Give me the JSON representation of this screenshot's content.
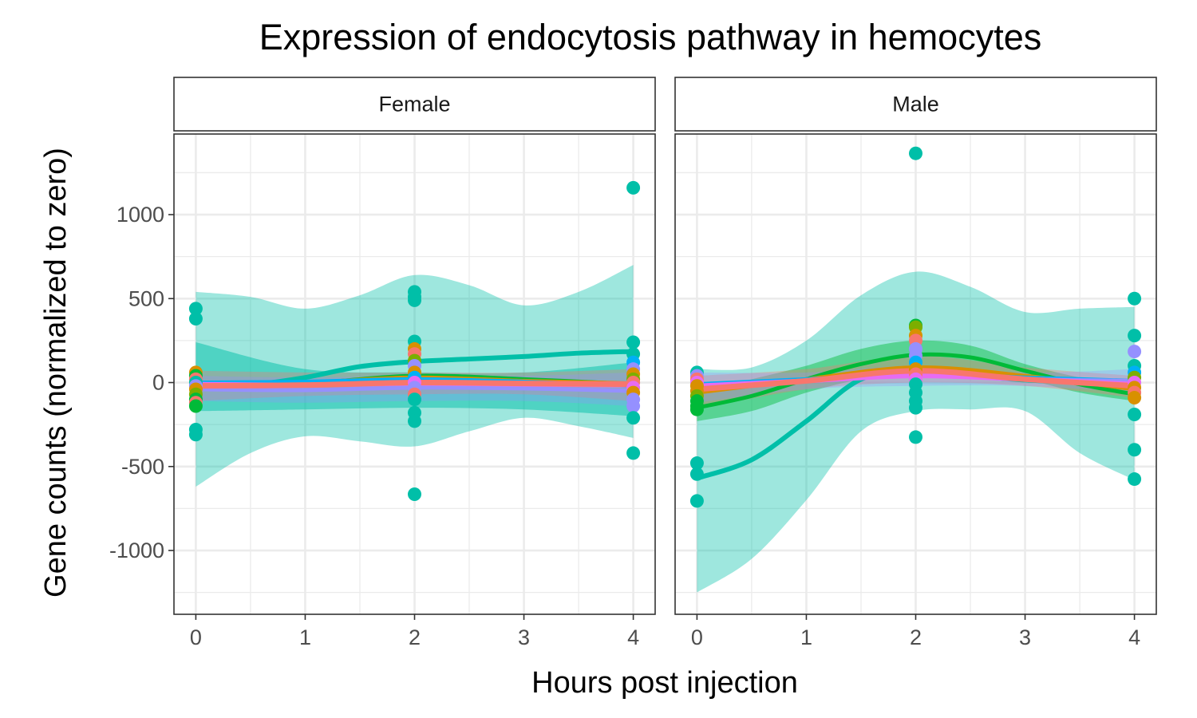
{
  "chart_data": {
    "type": "scatter",
    "title": "Expression of endocytosis pathway in hemocytes",
    "xlabel": "Hours post injection",
    "ylabel": "Gene counts (normalized to zero)",
    "xlim": [
      -0.2,
      4.2
    ],
    "ylim": [
      -1380,
      1480
    ],
    "x_ticks": [
      "0",
      "1",
      "2",
      "3",
      "4"
    ],
    "y_ticks": [
      "1000",
      "500",
      "0",
      "-500",
      "-1000"
    ],
    "y_tick_values": [
      1000,
      500,
      0,
      -500,
      -1000
    ],
    "minor_x": [
      0.5,
      1.5,
      2.5,
      3.5
    ],
    "minor_y": [
      1250,
      750,
      250,
      -250,
      -750,
      -1250
    ],
    "grid": true,
    "legend": "none",
    "colors": {
      "teal": "#00BFA8",
      "green": "#00BA38",
      "orange": "#D89000",
      "salmon": "#F8766D",
      "purple": "#9590FF",
      "magenta": "#E76BF3",
      "olive": "#7CAE00",
      "blue": "#00B0F6"
    },
    "panels": [
      {
        "label": "Female",
        "points": [
          {
            "x": 0,
            "y": 440,
            "c": "teal"
          },
          {
            "x": 0,
            "y": 380,
            "c": "teal"
          },
          {
            "x": 0,
            "y": 60,
            "c": "orange"
          },
          {
            "x": 0,
            "y": 40,
            "c": "green"
          },
          {
            "x": 0,
            "y": 20,
            "c": "salmon"
          },
          {
            "x": 0,
            "y": 0,
            "c": "teal"
          },
          {
            "x": 0,
            "y": -20,
            "c": "purple"
          },
          {
            "x": 0,
            "y": -40,
            "c": "orange"
          },
          {
            "x": 0,
            "y": -70,
            "c": "olive"
          },
          {
            "x": 0,
            "y": -100,
            "c": "green"
          },
          {
            "x": 0,
            "y": -120,
            "c": "salmon"
          },
          {
            "x": 0,
            "y": -140,
            "c": "green"
          },
          {
            "x": 0,
            "y": -280,
            "c": "teal"
          },
          {
            "x": 0,
            "y": -310,
            "c": "teal"
          },
          {
            "x": 2,
            "y": 540,
            "c": "teal"
          },
          {
            "x": 2,
            "y": 510,
            "c": "teal"
          },
          {
            "x": 2,
            "y": 490,
            "c": "teal"
          },
          {
            "x": 2,
            "y": 245,
            "c": "teal"
          },
          {
            "x": 2,
            "y": 200,
            "c": "orange"
          },
          {
            "x": 2,
            "y": 170,
            "c": "salmon"
          },
          {
            "x": 2,
            "y": 130,
            "c": "olive"
          },
          {
            "x": 2,
            "y": 100,
            "c": "purple"
          },
          {
            "x": 2,
            "y": 60,
            "c": "orange"
          },
          {
            "x": 2,
            "y": 30,
            "c": "blue"
          },
          {
            "x": 2,
            "y": 0,
            "c": "magenta"
          },
          {
            "x": 2,
            "y": -30,
            "c": "purple"
          },
          {
            "x": 2,
            "y": -70,
            "c": "salmon"
          },
          {
            "x": 2,
            "y": -100,
            "c": "teal"
          },
          {
            "x": 2,
            "y": -180,
            "c": "teal"
          },
          {
            "x": 2,
            "y": -230,
            "c": "teal"
          },
          {
            "x": 2,
            "y": -665,
            "c": "teal"
          },
          {
            "x": 4,
            "y": 1160,
            "c": "teal"
          },
          {
            "x": 4,
            "y": 240,
            "c": "teal"
          },
          {
            "x": 4,
            "y": 170,
            "c": "teal"
          },
          {
            "x": 4,
            "y": 120,
            "c": "blue"
          },
          {
            "x": 4,
            "y": 80,
            "c": "purple"
          },
          {
            "x": 4,
            "y": 50,
            "c": "orange"
          },
          {
            "x": 4,
            "y": 20,
            "c": "olive"
          },
          {
            "x": 4,
            "y": 0,
            "c": "salmon"
          },
          {
            "x": 4,
            "y": -30,
            "c": "magenta"
          },
          {
            "x": 4,
            "y": -60,
            "c": "orange"
          },
          {
            "x": 4,
            "y": -100,
            "c": "purple"
          },
          {
            "x": 4,
            "y": -140,
            "c": "purple"
          },
          {
            "x": 4,
            "y": -210,
            "c": "teal"
          },
          {
            "x": 4,
            "y": -420,
            "c": "teal"
          }
        ],
        "bands": [
          {
            "c": "teal",
            "opacity": 0.38,
            "x": [
              0,
              0.5,
              1,
              1.5,
              2,
              2.5,
              3,
              3.5,
              4
            ],
            "lo": [
              -620,
              -420,
              -320,
              -350,
              -380,
              -290,
              -210,
              -260,
              -330
            ],
            "hi": [
              540,
              510,
              440,
              520,
              640,
              580,
              460,
              540,
              700
            ]
          },
          {
            "c": "teal",
            "opacity": 0.5,
            "x": [
              0,
              1,
              2,
              3,
              4
            ],
            "lo": [
              -170,
              -160,
              -150,
              -160,
              -200
            ],
            "hi": [
              240,
              80,
              60,
              60,
              120
            ]
          },
          {
            "c": "salmon",
            "opacity": 0.35,
            "x": [
              0,
              1,
              2,
              3,
              4
            ],
            "lo": [
              -110,
              -80,
              -70,
              -70,
              -110
            ],
            "hi": [
              70,
              60,
              60,
              60,
              80
            ]
          },
          {
            "c": "purple",
            "opacity": 0.3,
            "x": [
              0,
              1,
              2,
              3,
              4
            ],
            "lo": [
              -110,
              -120,
              -110,
              -110,
              -140
            ],
            "hi": [
              40,
              30,
              40,
              40,
              60
            ]
          }
        ],
        "lines": [
          {
            "c": "teal",
            "width": 6,
            "x": [
              0,
              0.5,
              1,
              1.5,
              2,
              2.5,
              3,
              3.5,
              4
            ],
            "y": [
              -40,
              -15,
              30,
              95,
              125,
              140,
              155,
              175,
              185
            ]
          },
          {
            "c": "green",
            "width": 5,
            "x": [
              0,
              1,
              2,
              3,
              4
            ],
            "y": [
              -20,
              -5,
              40,
              20,
              -10
            ]
          },
          {
            "c": "orange",
            "width": 5,
            "x": [
              0,
              1,
              2,
              3,
              4
            ],
            "y": [
              -10,
              0,
              30,
              10,
              -5
            ]
          },
          {
            "c": "blue",
            "width": 5,
            "x": [
              0,
              1,
              2,
              3,
              4
            ],
            "y": [
              0,
              5,
              20,
              5,
              -20
            ]
          },
          {
            "c": "purple",
            "width": 5,
            "x": [
              0,
              1,
              2,
              3,
              4
            ],
            "y": [
              -40,
              -45,
              -30,
              -35,
              -50
            ]
          },
          {
            "c": "magenta",
            "width": 6,
            "x": [
              0,
              1,
              2,
              3,
              4
            ],
            "y": [
              -10,
              -15,
              -5,
              -10,
              -15
            ]
          },
          {
            "c": "salmon",
            "width": 7,
            "x": [
              0,
              1,
              2,
              3,
              4
            ],
            "y": [
              -20,
              -15,
              0,
              -5,
              -10
            ]
          }
        ]
      },
      {
        "label": "Male",
        "points": [
          {
            "x": 0,
            "y": 60,
            "c": "teal"
          },
          {
            "x": 0,
            "y": 40,
            "c": "purple"
          },
          {
            "x": 0,
            "y": 20,
            "c": "salmon"
          },
          {
            "x": 0,
            "y": 0,
            "c": "magenta"
          },
          {
            "x": 0,
            "y": -20,
            "c": "orange"
          },
          {
            "x": 0,
            "y": -50,
            "c": "orange"
          },
          {
            "x": 0,
            "y": -80,
            "c": "olive"
          },
          {
            "x": 0,
            "y": -110,
            "c": "green"
          },
          {
            "x": 0,
            "y": -140,
            "c": "green"
          },
          {
            "x": 0,
            "y": -160,
            "c": "green"
          },
          {
            "x": 0,
            "y": -480,
            "c": "teal"
          },
          {
            "x": 0,
            "y": -545,
            "c": "teal"
          },
          {
            "x": 0,
            "y": -705,
            "c": "teal"
          },
          {
            "x": 2,
            "y": 1365,
            "c": "teal"
          },
          {
            "x": 2,
            "y": 340,
            "c": "green"
          },
          {
            "x": 2,
            "y": 330,
            "c": "olive"
          },
          {
            "x": 2,
            "y": 280,
            "c": "orange"
          },
          {
            "x": 2,
            "y": 250,
            "c": "salmon"
          },
          {
            "x": 2,
            "y": 200,
            "c": "purple"
          },
          {
            "x": 2,
            "y": 160,
            "c": "purple"
          },
          {
            "x": 2,
            "y": 120,
            "c": "blue"
          },
          {
            "x": 2,
            "y": 80,
            "c": "orange"
          },
          {
            "x": 2,
            "y": 50,
            "c": "salmon"
          },
          {
            "x": 2,
            "y": 20,
            "c": "magenta"
          },
          {
            "x": 2,
            "y": -10,
            "c": "teal"
          },
          {
            "x": 2,
            "y": -60,
            "c": "teal"
          },
          {
            "x": 2,
            "y": -110,
            "c": "teal"
          },
          {
            "x": 2,
            "y": -150,
            "c": "teal"
          },
          {
            "x": 2,
            "y": -325,
            "c": "teal"
          },
          {
            "x": 4,
            "y": 500,
            "c": "teal"
          },
          {
            "x": 4,
            "y": 280,
            "c": "teal"
          },
          {
            "x": 4,
            "y": 185,
            "c": "purple"
          },
          {
            "x": 4,
            "y": 100,
            "c": "teal"
          },
          {
            "x": 4,
            "y": 60,
            "c": "blue"
          },
          {
            "x": 4,
            "y": 30,
            "c": "olive"
          },
          {
            "x": 4,
            "y": 0,
            "c": "magenta"
          },
          {
            "x": 4,
            "y": -30,
            "c": "orange"
          },
          {
            "x": 4,
            "y": -60,
            "c": "salmon"
          },
          {
            "x": 4,
            "y": -90,
            "c": "orange"
          },
          {
            "x": 4,
            "y": -190,
            "c": "teal"
          },
          {
            "x": 4,
            "y": -400,
            "c": "teal"
          },
          {
            "x": 4,
            "y": -575,
            "c": "teal"
          }
        ],
        "bands": [
          {
            "c": "teal",
            "opacity": 0.38,
            "x": [
              0,
              0.5,
              1,
              1.5,
              2,
              2.5,
              3,
              3.5,
              4
            ],
            "lo": [
              -1250,
              -1050,
              -700,
              -290,
              -170,
              -160,
              -170,
              -420,
              -580
            ],
            "hi": [
              80,
              90,
              250,
              520,
              660,
              570,
              420,
              440,
              450
            ]
          },
          {
            "c": "green",
            "opacity": 0.45,
            "x": [
              0,
              0.5,
              1,
              1.5,
              2,
              2.5,
              3,
              3.5,
              4
            ],
            "lo": [
              -230,
              -170,
              -60,
              20,
              60,
              70,
              20,
              -60,
              -110
            ],
            "hi": [
              -60,
              20,
              100,
              200,
              250,
              220,
              110,
              30,
              -30
            ]
          },
          {
            "c": "salmon",
            "opacity": 0.35,
            "x": [
              0,
              1,
              2,
              3,
              4
            ],
            "lo": [
              -160,
              -40,
              0,
              -20,
              -90
            ],
            "hi": [
              40,
              80,
              160,
              90,
              40
            ]
          },
          {
            "c": "purple",
            "opacity": 0.3,
            "x": [
              0,
              1,
              2,
              3,
              4
            ],
            "lo": [
              -120,
              -40,
              -20,
              -20,
              -60
            ],
            "hi": [
              60,
              60,
              100,
              60,
              80
            ]
          }
        ],
        "lines": [
          {
            "c": "teal",
            "width": 6,
            "x": [
              0,
              0.5,
              1,
              1.5,
              2,
              2.5,
              3,
              3.5,
              4
            ],
            "y": [
              -570,
              -460,
              -230,
              20,
              55,
              40,
              15,
              0,
              -30
            ]
          },
          {
            "c": "green",
            "width": 5,
            "x": [
              0,
              0.5,
              1,
              1.5,
              2,
              2.5,
              3,
              3.5,
              4
            ],
            "y": [
              -150,
              -80,
              20,
              110,
              165,
              150,
              70,
              -10,
              -70
            ]
          },
          {
            "c": "orange",
            "width": 5,
            "x": [
              0,
              1,
              2,
              3,
              4
            ],
            "y": [
              -60,
              20,
              90,
              40,
              -40
            ]
          },
          {
            "c": "blue",
            "width": 5,
            "x": [
              0,
              1,
              2,
              3,
              4
            ],
            "y": [
              -10,
              20,
              50,
              30,
              10
            ]
          },
          {
            "c": "purple",
            "width": 5,
            "x": [
              0,
              1,
              2,
              3,
              4
            ],
            "y": [
              -30,
              10,
              40,
              20,
              10
            ]
          },
          {
            "c": "magenta",
            "width": 6,
            "x": [
              0,
              1,
              2,
              3,
              4
            ],
            "y": [
              -20,
              10,
              40,
              20,
              -10
            ]
          },
          {
            "c": "salmon",
            "width": 7,
            "x": [
              0,
              1,
              2,
              3,
              4
            ],
            "y": [
              -40,
              10,
              70,
              20,
              -20
            ]
          }
        ]
      }
    ]
  }
}
